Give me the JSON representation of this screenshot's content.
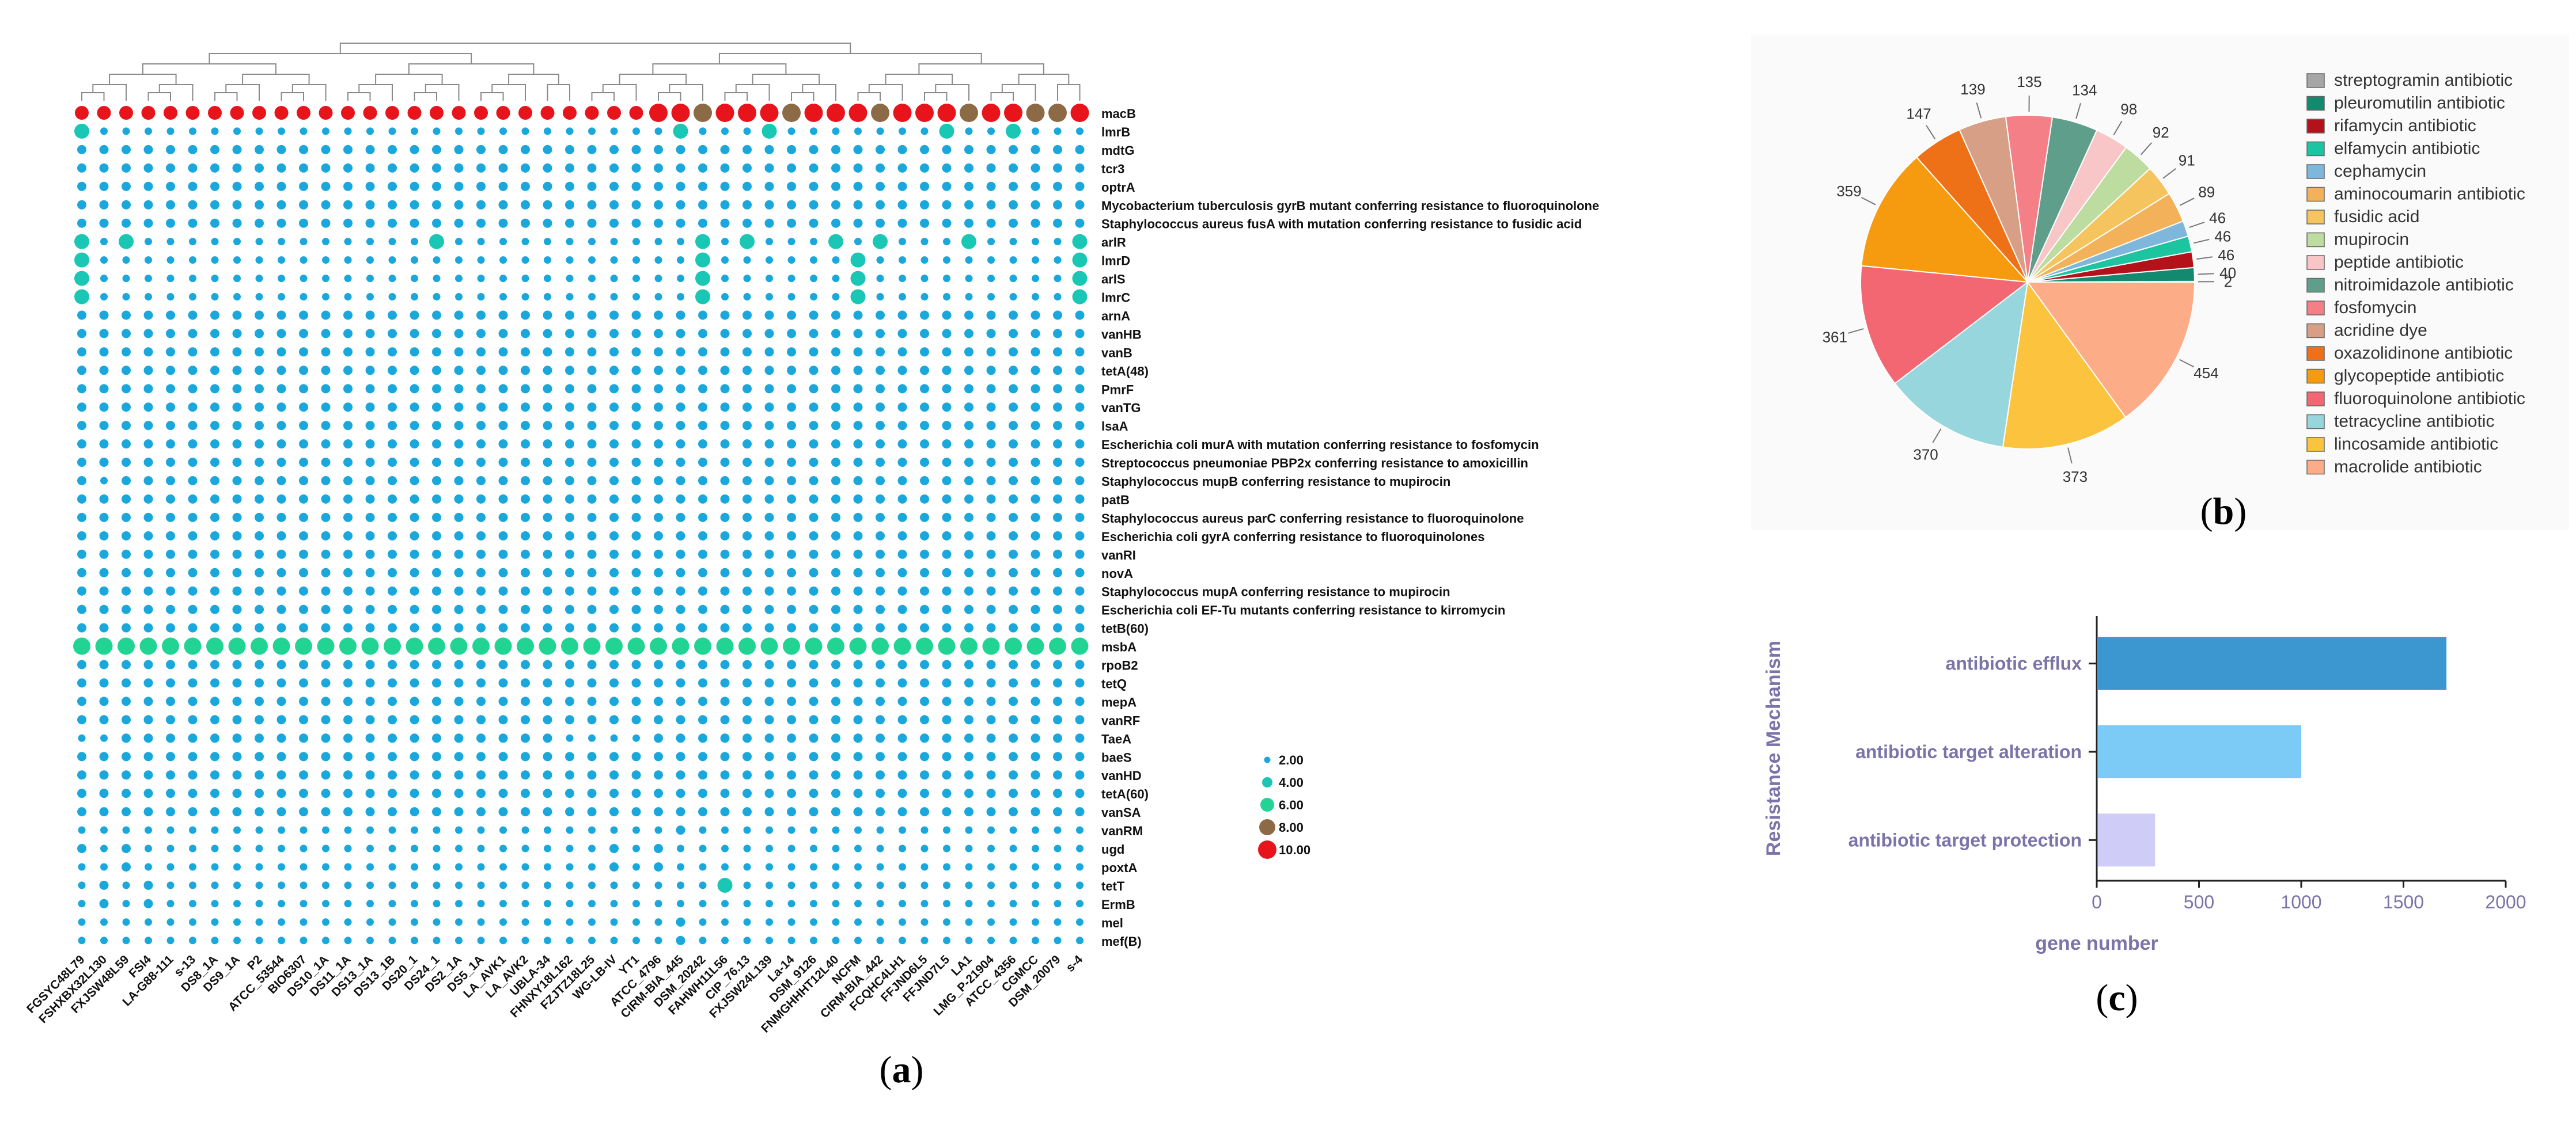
{
  "chart_data": [
    {
      "type": "bubble-heatmap",
      "panel": "(a)",
      "panel_letter": "a",
      "panel_paren_open": "(",
      "panel_paren_close": ")",
      "strains": [
        "FGSYC48L79",
        "FSHXBX32L130",
        "FXJSW48L59",
        "FSI4",
        "LA-G88-111",
        "s-13",
        "DS8_1A",
        "DS9_1A",
        "P2",
        "ATCC_53544",
        "BIO6307",
        "DS10_1A",
        "DS11_1A",
        "DS13_1A",
        "DS13_1B",
        "DS20_1",
        "DS24_1",
        "DS2_1A",
        "DS5_1A",
        "LA_AVK1",
        "LA_AVK2",
        "UBLA-34",
        "FHNXY18L162",
        "FZJTZ18L25",
        "WG-LB-IV",
        "YT1",
        "ATCC_4796",
        "CIRM-BIA_445",
        "DSM_20242",
        "FAHWH11L56",
        "CIP_76.13",
        "FXJSW24L139",
        "La-14",
        "DSM_9126",
        "FNMGHHHT12L40",
        "NCFM",
        "CIRM-BIA_442",
        "FCQHC4LH1",
        "FFJND6L5",
        "FFJND7L5",
        "LA1",
        "LMG_P-21904",
        "ATCC_4356",
        "CGMCC",
        "DSM_20079",
        "s-4"
      ],
      "genes": [
        "macB",
        "lmrB",
        "mdtG",
        "tcr3",
        "optrA",
        "Mycobacterium tuberculosis gyrB mutant conferring resistance to fluoroquinolone",
        "Staphylococcus aureus fusA with mutation conferring resistance to fusidic acid",
        "arlR",
        "lmrD",
        "arlS",
        "lmrC",
        "arnA",
        "vanHB",
        "vanB",
        "tetA(48)",
        "PmrF",
        "vanTG",
        "lsaA",
        "Escherichia coli murA with mutation conferring resistance to fosfomycin",
        "Streptococcus pneumoniae PBP2x conferring resistance to amoxicillin",
        "Staphylococcus mupB conferring resistance to mupirocin",
        "patB",
        "Staphylococcus aureus parC conferring resistance to fluoroquinolone",
        "Escherichia coli gyrA conferring resistance to fluoroquinolones",
        "vanRI",
        "novA",
        "Staphylococcus mupA conferring resistance to mupirocin",
        "Escherichia coli EF-Tu mutants conferring resistance to kirromycin",
        "tetB(60)",
        "msbA",
        "rpoB2",
        "tetQ",
        "mepA",
        "vanRF",
        "TaeA",
        "baeS",
        "vanHD",
        "tetA(60)",
        "vanSA",
        "vanRM",
        "ugd",
        "poxtA",
        "tetT",
        "ErmB",
        "mel",
        "mef(B)"
      ],
      "row_patterns": [
        "ccccccccccccccccccccccccccrrrrrrrrrrrrrrrrrrrr",
        "5..........................5...5.......5..5...",
        "dddddddddddddddddddddddddddddddddddddddddddddd",
        "dddddddddddddddddddddddddddddddddddddddddddddd",
        "dddddddddddddddddddddddddddddddddddddddddddddd",
        "dddddddddddddddddddddddddddddddddddddddddddddd",
        "dddddddddddddddddddddddddddddddddddddddddddddd",
        "5.5.............5...........5.5...5.5...5....5",
        "5...........................5......5.........5",
        "5...........................5......5.........5",
        "5...........................5......5.........5",
        "dddddddddddddddddddddddddddddddddddddddddddddd",
        "dddddddddddddddddddddddddddddddddddddddddddddd",
        "dddddddddddddddddddddddddddddddddddddddddddddd",
        "dddddddddddddddddddddddddddddddddddddddddddddd",
        "dddddddddddddddddddddddddddddddddddddddddddddd",
        "dddddddddddddddddddddddddddddddddddddddddddddd",
        "dddddddddddddddddddddddddddddddddddddddddddddd",
        "dddddddddddddddddddddddddddddddddddddddddddddd",
        "dddddddddddddddddddddddddddddddddddddddddddddd",
        "d.dddddddddddddddddddddddddddddddddddddddddddd",
        "dddddddddddddddddddddddddddddddddddddddddddddd",
        "dddddddddddddddddddddddddddddddddddddddddddddd",
        "dddddddddddddddddddddddddddddddddddddddddddddd",
        "dddddddddddddddddddddddddddddddddddddddddddddd",
        "dddddddddddddddddddddddddddddddddddddddddddddd",
        "dddddddddddddddddddddddddddddddddddddddddddddd",
        "dddddddddddddddddddddddddddddddddddddddddddddd",
        "dddddddddddddddddddddddddddddddddddddddddddddd",
        "gggggggggggggggggggggggggggggggggggggggggggggg",
        "dddddddddddddddddddddddddddddddddddddddddddddd",
        "dddddddddddddddddddddddddddddddddddddddddddddd",
        "dddddddddddddddddddddddddddddddddddddddddddddd",
        "dddddddddddddddddddddddddddddddddddddddddddddd",
        "..dddddddddddddddddddd....dddddddddddddddddddd",
        "dddddddddddddddddddddddddddddddddddddddddddddd",
        "dddddddddddddddddddddddddddddddddddddddddddddd",
        "dddddddddddddddddddddddddddddddddddddddddddddd",
        "dddddddddddddddddddddddddddddddddddddddddddddd",
        "...........................d..................",
        "d.d.....................d.d...................",
        "..d.....................d.d...................",
        ".d.d.........................5................",
        ".d.d..........................................",
        "...........................d..................",
        "...........................d.................."
      ],
      "legend": [
        {
          "label": "2.00",
          "value": 2,
          "color": "#1aa8dc"
        },
        {
          "label": "4.00",
          "value": 4,
          "color": "#1ac6b4"
        },
        {
          "label": "6.00",
          "value": 6,
          "color": "#22d494"
        },
        {
          "label": "8.00",
          "value": 8,
          "color": "#8c6a46"
        },
        {
          "label": "10.00",
          "value": 10,
          "color": "#e8141c"
        }
      ]
    },
    {
      "type": "pie",
      "panel": "(b)",
      "panel_letter": "b",
      "panel_paren_open": "(",
      "panel_paren_close": ")",
      "slices": [
        {
          "label": "streptogramin antibiotic",
          "value": 2,
          "color": "#a6a6a6"
        },
        {
          "label": "pleuromutilin antibiotic",
          "value": 40,
          "color": "#138a70"
        },
        {
          "label": "rifamycin antibiotic",
          "value": 46,
          "color": "#b3121a"
        },
        {
          "label": "elfamycin antibiotic",
          "value": 46,
          "color": "#1cc4a0"
        },
        {
          "label": "cephamycin",
          "value": 46,
          "color": "#7fb7dc"
        },
        {
          "label": "aminocoumarin antibiotic",
          "value": 89,
          "color": "#f3b25a"
        },
        {
          "label": "fusidic acid",
          "value": 91,
          "color": "#f6c45e"
        },
        {
          "label": "mupirocin",
          "value": 92,
          "color": "#bcdca0"
        },
        {
          "label": "peptide antibiotic",
          "value": 98,
          "color": "#f9c6c8"
        },
        {
          "label": "nitroimidazole antibiotic",
          "value": 134,
          "color": "#5f9e8a"
        },
        {
          "label": "fosfomycin",
          "value": 135,
          "color": "#f47f86"
        },
        {
          "label": "acridine dye",
          "value": 139,
          "color": "#d79f86"
        },
        {
          "label": "oxazolidinone antibiotic",
          "value": 147,
          "color": "#ee7017"
        },
        {
          "label": "glycopeptide antibiotic",
          "value": 359,
          "color": "#f69a10"
        },
        {
          "label": "fluoroquinolone antibiotic",
          "value": 361,
          "color": "#f36772"
        },
        {
          "label": "tetracycline antibiotic",
          "value": 370,
          "color": "#98d6dd"
        },
        {
          "label": "lincosamide antibiotic",
          "value": 373,
          "color": "#fcc43e"
        },
        {
          "label": "macrolide antibiotic",
          "value": 454,
          "color": "#fdac88"
        }
      ]
    },
    {
      "type": "bar",
      "orientation": "horizontal",
      "panel": "(c)",
      "panel_letter": "c",
      "panel_paren_open": "(",
      "panel_paren_close": ")",
      "categories": [
        "antibiotic efflux",
        "antibiotic target alteration",
        "antibiotic target protection"
      ],
      "values": [
        1710,
        1000,
        285
      ],
      "colors": [
        "#3c97d0",
        "#7ccaf6",
        "#cfcdf7"
      ],
      "xlabel": "gene number",
      "ylabel": "Resistance Mechanism",
      "xlim": [
        0,
        2000
      ],
      "xticks": [
        0,
        500,
        1000,
        1500,
        2000
      ],
      "xtick_labels": [
        "0",
        "500",
        "1000",
        "1500",
        "2000"
      ]
    }
  ]
}
